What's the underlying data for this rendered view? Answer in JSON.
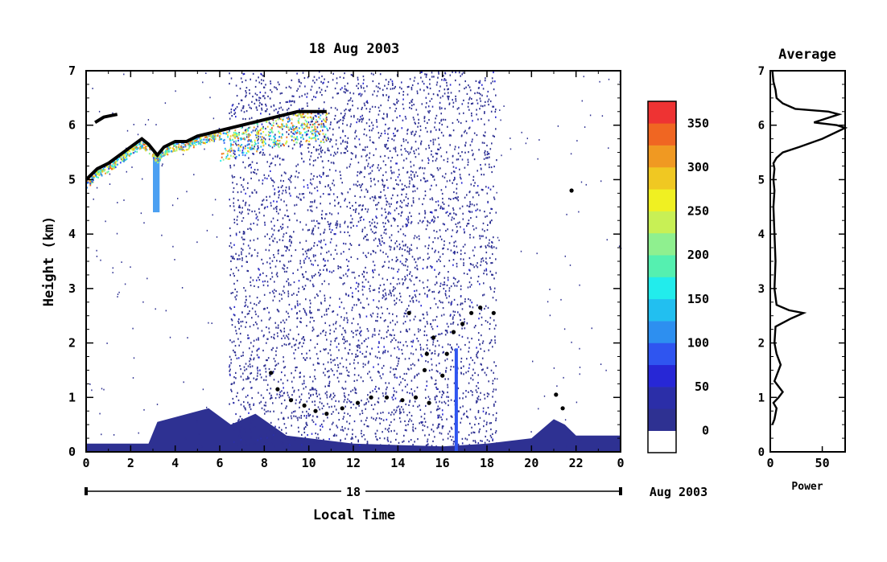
{
  "chart_data": [
    {
      "type": "heatmap",
      "title": "18 Aug 2003",
      "xlabel": "Local Time",
      "ylabel": "Height (km)",
      "xlim": [
        0,
        24
      ],
      "ylim": [
        0,
        7
      ],
      "x_ticks": [
        "0",
        "2",
        "4",
        "6",
        "8",
        "10",
        "12",
        "14",
        "16",
        "18",
        "20",
        "22",
        "0"
      ],
      "y_ticks": [
        "0",
        "1",
        "2",
        "3",
        "4",
        "5",
        "6",
        "7"
      ],
      "date_bar": {
        "day_label": "18",
        "month_label": "Aug 2003"
      },
      "colorbar": {
        "tick_labels": [
          "0",
          "50",
          "100",
          "150",
          "200",
          "250",
          "300",
          "350"
        ],
        "levels": [
          {
            "color": "#ffffff"
          },
          {
            "color": "#2e3192"
          },
          {
            "color": "#2b2ea8"
          },
          {
            "color": "#2727d6"
          },
          {
            "color": "#2f55f0"
          },
          {
            "color": "#2d8ff0"
          },
          {
            "color": "#22bff0"
          },
          {
            "color": "#22ecec"
          },
          {
            "color": "#55f0b0"
          },
          {
            "color": "#8ff08f"
          },
          {
            "color": "#c8f055"
          },
          {
            "color": "#f0f022"
          },
          {
            "color": "#f0c822"
          },
          {
            "color": "#f09922"
          },
          {
            "color": "#f06622"
          },
          {
            "color": "#ee3333"
          }
        ]
      },
      "features": {
        "ground_clutter": [
          [
            0,
            0.15
          ],
          [
            2.8,
            0.15
          ],
          [
            3.2,
            0.55
          ],
          [
            5.5,
            0.8
          ],
          [
            6.5,
            0.5
          ],
          [
            7.6,
            0.7
          ],
          [
            9,
            0.3
          ],
          [
            12,
            0.15
          ],
          [
            16,
            0.1
          ],
          [
            18,
            0.15
          ],
          [
            20,
            0.25
          ],
          [
            21,
            0.6
          ],
          [
            21.5,
            0.5
          ],
          [
            22,
            0.3
          ],
          [
            24,
            0.3
          ]
        ],
        "cloud_top_trace": [
          [
            0,
            5.0
          ],
          [
            0.5,
            5.2
          ],
          [
            1,
            5.3
          ],
          [
            1.5,
            5.45
          ],
          [
            2,
            5.6
          ],
          [
            2.5,
            5.75
          ],
          [
            2.8,
            5.65
          ],
          [
            3.2,
            5.45
          ],
          [
            3.5,
            5.6
          ],
          [
            4,
            5.7
          ],
          [
            4.5,
            5.7
          ],
          [
            5,
            5.8
          ],
          [
            5.5,
            5.85
          ],
          [
            6,
            5.9
          ],
          [
            6.5,
            5.95
          ],
          [
            7,
            6.0
          ],
          [
            7.5,
            6.05
          ],
          [
            8,
            6.1
          ],
          [
            8.5,
            6.15
          ],
          [
            9,
            6.2
          ],
          [
            9.5,
            6.25
          ],
          [
            10,
            6.25
          ],
          [
            10.8,
            6.25
          ]
        ],
        "upper_segment": [
          [
            0.4,
            6.05
          ],
          [
            0.8,
            6.15
          ],
          [
            1.4,
            6.2
          ]
        ],
        "low_cloud_points": [
          [
            8.3,
            1.45
          ],
          [
            8.6,
            1.15
          ],
          [
            9.2,
            0.95
          ],
          [
            9.8,
            0.85
          ],
          [
            10.3,
            0.75
          ],
          [
            10.8,
            0.7
          ],
          [
            11.5,
            0.8
          ],
          [
            12.2,
            0.9
          ],
          [
            12.8,
            1.0
          ],
          [
            13.5,
            1.0
          ],
          [
            14.2,
            0.95
          ],
          [
            14.8,
            1.0
          ],
          [
            15.4,
            0.9
          ],
          [
            15.2,
            1.5
          ],
          [
            15.3,
            1.8
          ],
          [
            16,
            1.4
          ],
          [
            16.2,
            1.8
          ],
          [
            16.5,
            2.2
          ],
          [
            16.9,
            2.35
          ],
          [
            17.3,
            2.55
          ],
          [
            17.7,
            2.65
          ],
          [
            18.3,
            2.55
          ],
          [
            14.5,
            2.55
          ],
          [
            15.6,
            2.1
          ],
          [
            21.1,
            1.05
          ],
          [
            21.4,
            0.8
          ],
          [
            21.8,
            4.8
          ]
        ],
        "echo_region": {
          "x_range": [
            6.4,
            18.4
          ],
          "y_range": [
            0.1,
            7
          ]
        }
      }
    },
    {
      "type": "line",
      "title": "Average",
      "xlabel": "Power",
      "ylabel": "",
      "xlim": [
        0,
        72
      ],
      "ylim": [
        0,
        7
      ],
      "x_ticks": [
        "0",
        "50"
      ],
      "y_ticks": [
        "0",
        "1",
        "2",
        "3",
        "4",
        "5",
        "6",
        "7"
      ],
      "series": [
        {
          "x": [
            2,
            4,
            6,
            3,
            8,
            12,
            4,
            10,
            6,
            4,
            5,
            20,
            32,
            18,
            6,
            4,
            5,
            4,
            3,
            4,
            3,
            4,
            3,
            6,
            12,
            28,
            50,
            72,
            64,
            42,
            66,
            56,
            24,
            12,
            6,
            5,
            3,
            2
          ],
          "y": [
            0.5,
            0.6,
            0.8,
            0.9,
            1.0,
            1.1,
            1.3,
            1.6,
            1.8,
            2.0,
            2.3,
            2.45,
            2.55,
            2.6,
            2.7,
            3.0,
            3.5,
            4.0,
            4.5,
            4.8,
            5.0,
            5.2,
            5.3,
            5.4,
            5.5,
            5.6,
            5.75,
            5.95,
            6.0,
            6.05,
            6.2,
            6.25,
            6.3,
            6.4,
            6.5,
            6.65,
            6.8,
            7.0
          ]
        }
      ]
    }
  ]
}
